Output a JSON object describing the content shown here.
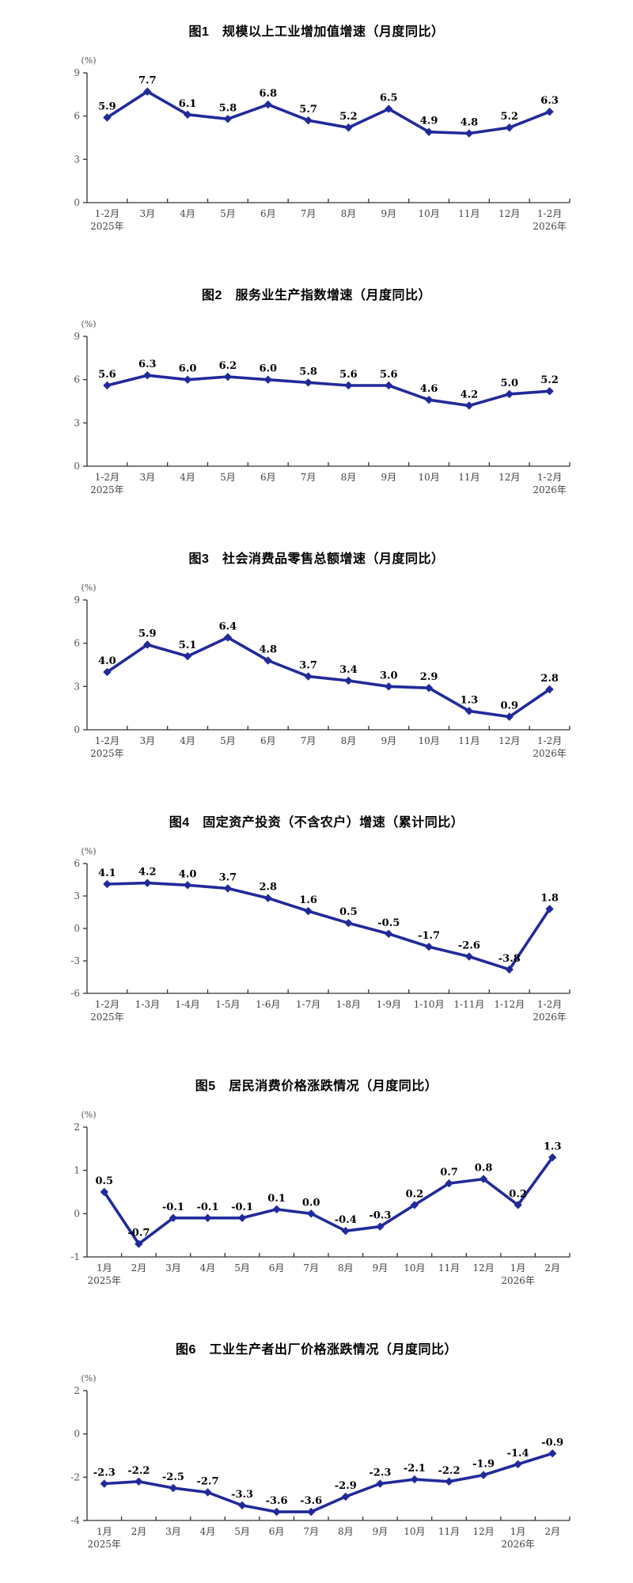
{
  "page": {
    "background": "#ffffff",
    "accent_line_color": "#212a9a"
  },
  "chart_data": [
    {
      "type": "line",
      "title": "图1　规模以上工业增加值增速（月度同比）",
      "unit": "(%)",
      "line_color": "#212a9a",
      "categories": [
        "1-2月",
        "3月",
        "4月",
        "5月",
        "6月",
        "7月",
        "8月",
        "9月",
        "10月",
        "11月",
        "12月",
        "1-2月"
      ],
      "start_year": "2025年",
      "start_year_index": 0,
      "end_year": "2026年",
      "end_year_index": 11,
      "values": [
        5.9,
        7.7,
        6.1,
        5.8,
        6.8,
        5.7,
        5.2,
        6.5,
        4.9,
        4.8,
        5.2,
        6.3
      ],
      "labels": [
        "5.9",
        "7.7",
        "6.1",
        "5.8",
        "6.8",
        "5.7",
        "5.2",
        "6.5",
        "4.9",
        "4.8",
        "5.2",
        "6.3"
      ],
      "ylim": [
        0,
        9
      ],
      "yticks": [
        0,
        3,
        6,
        9
      ],
      "grid": false,
      "legend": "none"
    },
    {
      "type": "line",
      "title": "图2　服务业生产指数增速（月度同比）",
      "unit": "(%)",
      "line_color": "#212a9a",
      "categories": [
        "1-2月",
        "3月",
        "4月",
        "5月",
        "6月",
        "7月",
        "8月",
        "9月",
        "10月",
        "11月",
        "12月",
        "1-2月"
      ],
      "start_year": "2025年",
      "start_year_index": 0,
      "end_year": "2026年",
      "end_year_index": 11,
      "values": [
        5.6,
        6.3,
        6.0,
        6.2,
        6.0,
        5.8,
        5.6,
        5.6,
        4.6,
        4.2,
        5.0,
        5.2
      ],
      "labels": [
        "5.6",
        "6.3",
        "6.0",
        "6.2",
        "6.0",
        "5.8",
        "5.6",
        "5.6",
        "4.6",
        "4.2",
        "5.0",
        "5.2"
      ],
      "ylim": [
        0,
        9
      ],
      "yticks": [
        0,
        3,
        6,
        9
      ],
      "grid": false,
      "legend": "none"
    },
    {
      "type": "line",
      "title": "图3　社会消费品零售总额增速（月度同比）",
      "unit": "(%)",
      "line_color": "#212a9a",
      "categories": [
        "1-2月",
        "3月",
        "4月",
        "5月",
        "6月",
        "7月",
        "8月",
        "9月",
        "10月",
        "11月",
        "12月",
        "1-2月"
      ],
      "start_year": "2025年",
      "start_year_index": 0,
      "end_year": "2026年",
      "end_year_index": 11,
      "values": [
        4.0,
        5.9,
        5.1,
        6.4,
        4.8,
        3.7,
        3.4,
        3.0,
        2.9,
        1.3,
        0.9,
        2.8
      ],
      "labels": [
        "4.0",
        "5.9",
        "5.1",
        "6.4",
        "4.8",
        "3.7",
        "3.4",
        "3.0",
        "2.9",
        "1.3",
        "0.9",
        "2.8"
      ],
      "ylim": [
        0,
        9
      ],
      "yticks": [
        0,
        3,
        6,
        9
      ],
      "grid": false,
      "legend": "none"
    },
    {
      "type": "line",
      "title": "图4　固定资产投资（不含农户）增速（累计同比）",
      "unit": "(%)",
      "line_color": "#212a9a",
      "categories": [
        "1-2月",
        "1-3月",
        "1-4月",
        "1-5月",
        "1-6月",
        "1-7月",
        "1-8月",
        "1-9月",
        "1-10月",
        "1-11月",
        "1-12月",
        "1-2月"
      ],
      "start_year": "2025年",
      "start_year_index": 0,
      "end_year": "2026年",
      "end_year_index": 11,
      "values": [
        4.1,
        4.2,
        4.0,
        3.7,
        2.8,
        1.6,
        0.5,
        -0.5,
        -1.7,
        -2.6,
        -3.8,
        1.8
      ],
      "labels": [
        "4.1",
        "4.2",
        "4.0",
        "3.7",
        "2.8",
        "1.6",
        "0.5",
        "-0.5",
        "-1.7",
        "-2.6",
        "-3.8",
        "1.8"
      ],
      "ylim": [
        -6,
        6
      ],
      "yticks": [
        -6,
        -3,
        0,
        3,
        6
      ],
      "grid": false,
      "legend": "none"
    },
    {
      "type": "line",
      "title": "图5　居民消费价格涨跌情况（月度同比）",
      "unit": "(%)",
      "line_color": "#212a9a",
      "categories": [
        "1月",
        "2月",
        "3月",
        "4月",
        "5月",
        "6月",
        "7月",
        "8月",
        "9月",
        "10月",
        "11月",
        "12月",
        "1月",
        "2月"
      ],
      "start_year": "2025年",
      "start_year_index": 0,
      "end_year": "2026年",
      "end_year_index": 12,
      "values": [
        0.5,
        -0.7,
        -0.1,
        -0.1,
        -0.1,
        0.1,
        0.0,
        -0.4,
        -0.3,
        0.2,
        0.7,
        0.8,
        0.2,
        1.3
      ],
      "labels": [
        "0.5",
        "-0.7",
        "-0.1",
        "-0.1",
        "-0.1",
        "0.1",
        "0.0",
        "-0.4",
        "-0.3",
        "0.2",
        "0.7",
        "0.8",
        "0.2",
        "1.3"
      ],
      "ylim": [
        -1,
        2
      ],
      "yticks": [
        -1,
        0,
        1,
        2
      ],
      "grid": false,
      "legend": "none"
    },
    {
      "type": "line",
      "title": "图6　工业生产者出厂价格涨跌情况（月度同比）",
      "unit": "(%)",
      "line_color": "#212a9a",
      "categories": [
        "1月",
        "2月",
        "3月",
        "4月",
        "5月",
        "6月",
        "7月",
        "8月",
        "9月",
        "10月",
        "11月",
        "12月",
        "1月",
        "2月"
      ],
      "start_year": "2025年",
      "start_year_index": 0,
      "end_year": "2026年",
      "end_year_index": 12,
      "values": [
        -2.3,
        -2.2,
        -2.5,
        -2.7,
        -3.3,
        -3.6,
        -3.6,
        -2.9,
        -2.3,
        -2.1,
        -2.2,
        -1.9,
        -1.4,
        -0.9
      ],
      "labels": [
        "-2.3",
        "-2.2",
        "-2.5",
        "-2.7",
        "-3.3",
        "-3.6",
        "-3.6",
        "-2.9",
        "-2.3",
        "-2.1",
        "-2.2",
        "-1.9",
        "-1.4",
        "-0.9"
      ],
      "ylim": [
        -4,
        2
      ],
      "yticks": [
        -4,
        -2,
        0,
        2
      ],
      "grid": false,
      "legend": "none"
    }
  ]
}
